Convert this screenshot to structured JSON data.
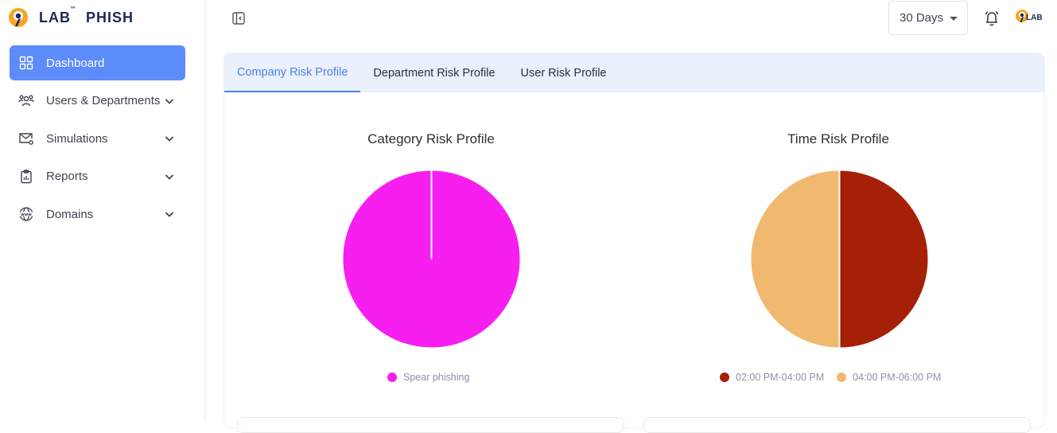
{
  "brand": {
    "name_left": "LAB",
    "tm": "™",
    "name_right": "PHISH"
  },
  "sidebar": {
    "items": [
      {
        "label": "Dashboard",
        "icon": "grid-icon",
        "active": true,
        "expandable": false
      },
      {
        "label": "Users & Departments",
        "icon": "users-icon",
        "active": false,
        "expandable": true
      },
      {
        "label": "Simulations",
        "icon": "mail-gear-icon",
        "active": false,
        "expandable": true
      },
      {
        "label": "Reports",
        "icon": "clipboard-chart-icon",
        "active": false,
        "expandable": true
      },
      {
        "label": "Domains",
        "icon": "globe-www-icon",
        "active": false,
        "expandable": true
      }
    ]
  },
  "header": {
    "period_select": {
      "value": "30 Days"
    },
    "avatar_text": "LAB"
  },
  "tabs": [
    {
      "label": "Company Risk Profile",
      "active": true
    },
    {
      "label": "Department Risk Profile",
      "active": false
    },
    {
      "label": "User Risk Profile",
      "active": false
    }
  ],
  "colors": {
    "accent": "#5c8bfa",
    "tab_active": "#4d80ef",
    "tab_bg": "#eaf1fd"
  },
  "chart_data": [
    {
      "type": "pie",
      "title": "Category Risk Profile",
      "series": [
        {
          "name": "Spear phishing",
          "value": 100,
          "color": "#f71ef0"
        }
      ],
      "legend": "bottom"
    },
    {
      "type": "pie",
      "title": "Time Risk Profile",
      "series": [
        {
          "name": "02:00 PM-04:00 PM",
          "value": 50,
          "color": "#a52007"
        },
        {
          "name": "04:00 PM-06:00 PM",
          "value": 50,
          "color": "#f0b96f"
        }
      ],
      "legend": "bottom"
    }
  ]
}
